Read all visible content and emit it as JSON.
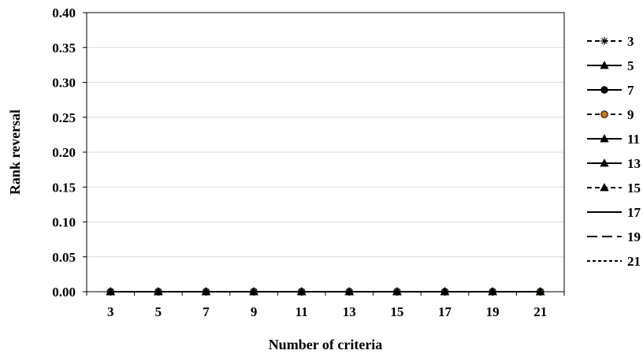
{
  "chart_data": {
    "type": "line",
    "xlabel": "Number of criteria",
    "ylabel": "Rank reversal",
    "categories": [
      "3",
      "5",
      "7",
      "9",
      "11",
      "13",
      "15",
      "17",
      "19",
      "21"
    ],
    "ylim": [
      0,
      0.4
    ],
    "yticks": [
      "0.00",
      "0.05",
      "0.10",
      "0.15",
      "0.20",
      "0.25",
      "0.30",
      "0.35",
      "0.40"
    ],
    "grid": "horizontal",
    "legend_position": "right",
    "series": [
      {
        "name": "3",
        "values": [
          0,
          0,
          0,
          0,
          0,
          0,
          0,
          0,
          0,
          0
        ],
        "line": "dashed",
        "marker": "asterisk",
        "color": "#000000"
      },
      {
        "name": "5",
        "values": [
          0,
          0,
          0,
          0,
          0,
          0,
          0,
          0,
          0,
          0
        ],
        "line": "solid",
        "marker": "triangle",
        "color": "#000000"
      },
      {
        "name": "7",
        "values": [
          0,
          0,
          0,
          0,
          0,
          0,
          0,
          0,
          0,
          0
        ],
        "line": "solid",
        "marker": "circle",
        "color": "#000000"
      },
      {
        "name": "9",
        "values": [
          0,
          0,
          0,
          0,
          0,
          0,
          0,
          0,
          0,
          0
        ],
        "line": "dashed",
        "marker": "circle",
        "color": "#000000",
        "marker_fill": "#c8781e"
      },
      {
        "name": "11",
        "values": [
          0,
          0,
          0,
          0,
          0,
          0,
          0,
          0,
          0,
          0
        ],
        "line": "solid",
        "marker": "triangle",
        "color": "#000000"
      },
      {
        "name": "13",
        "values": [
          0,
          0,
          0,
          0,
          0,
          0,
          0,
          0,
          0,
          0
        ],
        "line": "solid",
        "marker": "triangle",
        "color": "#000000"
      },
      {
        "name": "15",
        "values": [
          0,
          0,
          0,
          0,
          0,
          0,
          0,
          0,
          0,
          0
        ],
        "line": "dashed",
        "marker": "triangle",
        "color": "#000000"
      },
      {
        "name": "17",
        "values": [
          0,
          0,
          0,
          0,
          0,
          0,
          0,
          0,
          0,
          0
        ],
        "line": "solid",
        "marker": "none",
        "color": "#000000"
      },
      {
        "name": "19",
        "values": [
          0,
          0,
          0,
          0,
          0,
          0,
          0,
          0,
          0,
          0
        ],
        "line": "longdash",
        "marker": "none",
        "color": "#000000"
      },
      {
        "name": "21",
        "values": [
          0,
          0,
          0,
          0,
          0,
          0,
          0,
          0,
          0,
          0
        ],
        "line": "shortdash",
        "marker": "none",
        "color": "#000000"
      }
    ]
  }
}
